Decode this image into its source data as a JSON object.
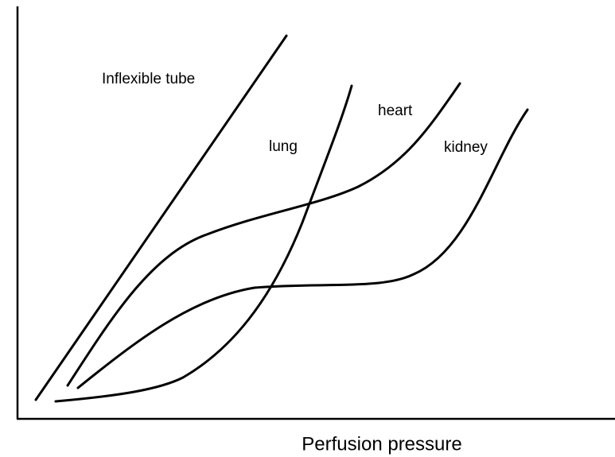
{
  "curve_labels": [
    "Inflexible tube",
    "lung",
    "heart",
    "kidney"
  ],
  "x_axis_label": "Perfusion pressure"
}
